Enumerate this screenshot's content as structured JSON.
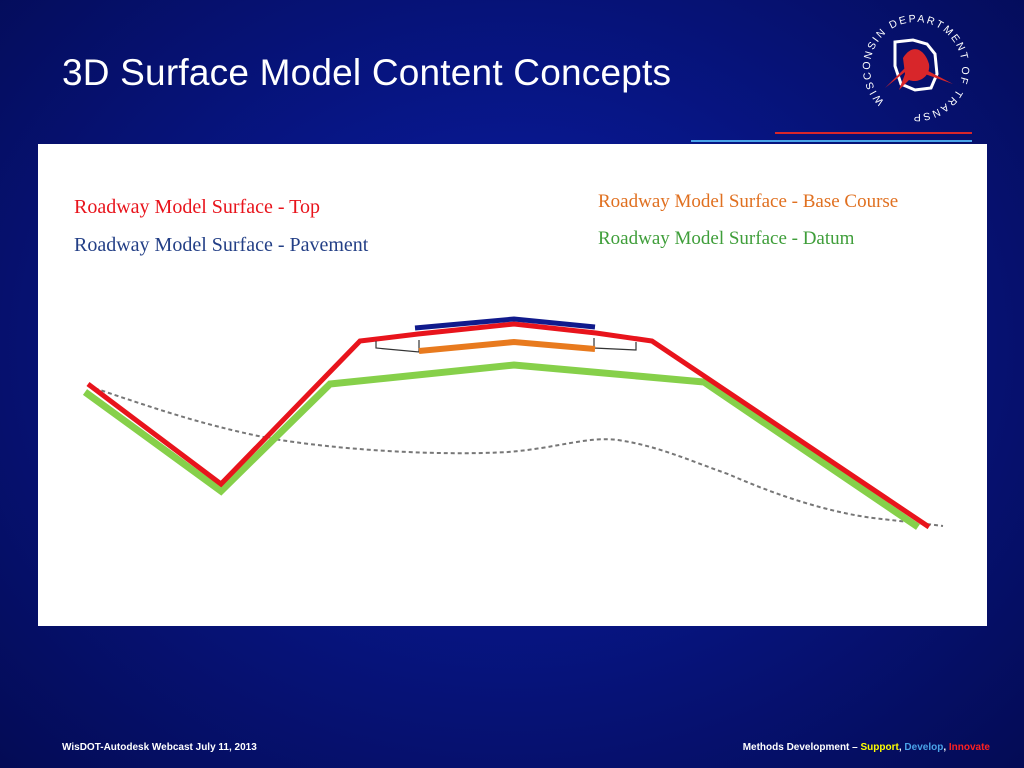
{
  "slide": {
    "title": "3D Surface Model Content Concepts"
  },
  "logo": {
    "ring_text": "WISCONSIN DEPARTMENT OF TRANSPORTATION",
    "icon": "wisdot-seal-icon"
  },
  "diagram": {
    "legend": {
      "top": "Roadway Model Surface - Top",
      "pavement": "Roadway Model Surface - Pavement",
      "base_course": "Roadway Model Surface - Base Course",
      "datum": "Roadway Model Surface - Datum"
    },
    "colors": {
      "top": "#e8141c",
      "pavement": "#233f86",
      "pavement_line": "#101a8c",
      "base_course": "#e07020",
      "base_course_line": "#e87a1e",
      "datum": "#3f9e3a",
      "datum_line": "#86d04a",
      "existing_ground": "#777777"
    }
  },
  "footer": {
    "left": "WisDOT-Autodesk Webcast July 11, 2013",
    "right_prefix": "Methods Development – ",
    "support": "Support",
    "sep1": ", ",
    "develop": "Develop",
    "sep2": ", ",
    "innovate": "Innovate",
    "support_color": "#ffff00",
    "develop_color": "#4aa3e8",
    "innovate_color": "#ff2020"
  }
}
